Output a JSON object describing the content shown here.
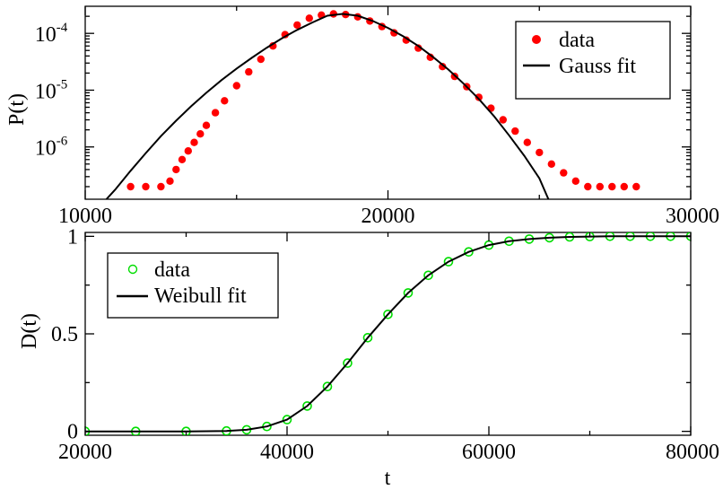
{
  "chart_data": [
    {
      "type": "scatter",
      "title": "",
      "xlabel": "",
      "ylabel": "P(t)",
      "xlim": [
        10000,
        30000
      ],
      "ylim": [
        1.2e-07,
        0.0003
      ],
      "yscale": "log",
      "grid": false,
      "legend_position": "top-right",
      "x_ticks": [
        10000,
        20000,
        30000
      ],
      "x_tick_labels": [
        "10000",
        "20000",
        "30000"
      ],
      "y_ticks": [
        1e-06,
        1e-05,
        0.0001
      ],
      "y_tick_labels": [
        {
          "base": "10",
          "exp": "-6"
        },
        {
          "base": "10",
          "exp": "-5"
        },
        {
          "base": "10",
          "exp": "-4"
        }
      ],
      "series": [
        {
          "name": "data",
          "kind": "points",
          "color": "#ff0000",
          "x": [
            11500,
            12000,
            12500,
            12800,
            13000,
            13200,
            13400,
            13600,
            13800,
            14000,
            14300,
            14600,
            15000,
            15400,
            15800,
            16200,
            16600,
            17000,
            17400,
            17800,
            18200,
            18600,
            19000,
            19400,
            19800,
            20200,
            20600,
            21000,
            21400,
            21800,
            22200,
            22600,
            23000,
            23400,
            23800,
            24200,
            24600,
            25000,
            25400,
            25800,
            26200,
            26600,
            27000,
            27400,
            27800,
            28200
          ],
          "y": [
            2e-07,
            2e-07,
            2e-07,
            2.5e-07,
            4e-07,
            6e-07,
            8.5e-07,
            1.2e-06,
            1.7e-06,
            2.4e-06,
            4e-06,
            6.5e-06,
            1.2e-05,
            2.1e-05,
            3.5e-05,
            6e-05,
            9.5e-05,
            0.00014,
            0.000185,
            0.00021,
            0.00022,
            0.000215,
            0.000195,
            0.000165,
            0.000132,
            0.000102,
            7.6e-05,
            5.5e-05,
            3.8e-05,
            2.6e-05,
            1.75e-05,
            1.15e-05,
            7.5e-06,
            4.8e-06,
            3e-06,
            1.9e-06,
            1.2e-06,
            8e-07,
            5e-07,
            3.5e-07,
            2.5e-07,
            2e-07,
            2e-07,
            2e-07,
            2e-07,
            2e-07
          ]
        },
        {
          "name": "Gauss fit",
          "kind": "line",
          "color": "#000000",
          "x": [
            10700,
            11000,
            11500,
            12000,
            12500,
            13000,
            13500,
            14000,
            14500,
            15000,
            15500,
            16000,
            16500,
            17000,
            17500,
            18000,
            18500,
            19000,
            19500,
            20000,
            20500,
            21000,
            21500,
            22000,
            22500,
            23000,
            23500,
            24000,
            24500,
            25000,
            25300
          ],
          "y": [
            1.2e-07,
            1.8e-07,
            3.8e-07,
            7.8e-07,
            1.55e-06,
            2.9e-06,
            5.2e-06,
            9e-06,
            1.5e-05,
            2.4e-05,
            3.7e-05,
            5.6e-05,
            8.2e-05,
            0.000115,
            0.000155,
            0.000205,
            0.00022,
            0.000205,
            0.000165,
            0.000125,
            8.9e-05,
            6e-05,
            3.8e-05,
            2.3e-05,
            1.3e-05,
            7e-06,
            3.5e-06,
            1.6e-06,
            7e-07,
            2.8e-07,
            1.2e-07
          ]
        }
      ]
    },
    {
      "type": "line",
      "title": "",
      "xlabel": "t",
      "ylabel": "D(t)",
      "xlim": [
        20000,
        80000
      ],
      "ylim": [
        -0.02,
        1.02
      ],
      "grid": false,
      "legend_position": "top-left",
      "x_ticks": [
        20000,
        40000,
        60000,
        80000
      ],
      "x_tick_labels": [
        "20000",
        "40000",
        "60000",
        "80000"
      ],
      "y_ticks": [
        0,
        0.5,
        1
      ],
      "y_tick_labels": [
        "0",
        "0.5",
        "1"
      ],
      "series": [
        {
          "name": "data",
          "kind": "points",
          "color": "#00dd00",
          "x": [
            20000,
            25000,
            30000,
            34000,
            36000,
            38000,
            40000,
            42000,
            44000,
            46000,
            48000,
            50000,
            52000,
            54000,
            56000,
            58000,
            60000,
            62000,
            64000,
            66000,
            68000,
            70000,
            72000,
            74000,
            76000,
            78000,
            80000
          ],
          "y": [
            0,
            0,
            0,
            0.002,
            0.008,
            0.025,
            0.06,
            0.13,
            0.23,
            0.35,
            0.48,
            0.6,
            0.71,
            0.8,
            0.87,
            0.92,
            0.955,
            0.975,
            0.986,
            0.993,
            0.997,
            0.999,
            1,
            1,
            1,
            1,
            1
          ]
        },
        {
          "name": "Weibull fit",
          "kind": "line",
          "color": "#000000",
          "x": [
            20000,
            25000,
            30000,
            34000,
            36000,
            38000,
            40000,
            42000,
            44000,
            46000,
            48000,
            50000,
            52000,
            54000,
            56000,
            58000,
            60000,
            62000,
            64000,
            66000,
            68000,
            70000,
            72000,
            74000,
            76000,
            78000,
            80000
          ],
          "y": [
            0,
            0,
            0,
            0.002,
            0.008,
            0.025,
            0.06,
            0.13,
            0.23,
            0.35,
            0.48,
            0.6,
            0.71,
            0.8,
            0.87,
            0.92,
            0.955,
            0.975,
            0.986,
            0.993,
            0.997,
            0.999,
            1,
            1,
            1,
            1,
            1
          ]
        }
      ]
    }
  ]
}
